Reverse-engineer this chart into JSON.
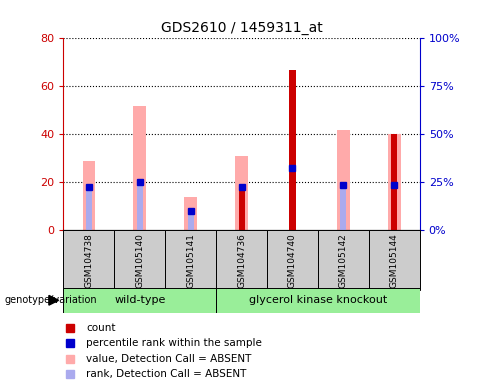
{
  "title": "GDS2610 / 1459311_at",
  "samples": [
    "GSM104738",
    "GSM105140",
    "GSM105141",
    "GSM104736",
    "GSM104740",
    "GSM105142",
    "GSM105144"
  ],
  "group1_label": "wild-type",
  "group2_label": "glycerol kinase knockout",
  "group1_indices": [
    0,
    1,
    2
  ],
  "group2_indices": [
    3,
    4,
    5,
    6
  ],
  "pink_bars": [
    29,
    52,
    14,
    31,
    0,
    42,
    40
  ],
  "light_blue_bars": [
    18,
    20,
    8,
    18,
    25,
    19,
    19
  ],
  "dark_red_bars": [
    0,
    0,
    0,
    17,
    67,
    0,
    40
  ],
  "blue_squares": [
    18,
    20,
    8,
    18,
    26,
    19,
    19
  ],
  "ylim_left": [
    0,
    80
  ],
  "ylim_right": [
    0,
    100
  ],
  "yticks_left": [
    0,
    20,
    40,
    60,
    80
  ],
  "yticks_right": [
    0,
    25,
    50,
    75,
    100
  ],
  "ytick_labels_left": [
    "0",
    "20",
    "40",
    "60",
    "80"
  ],
  "ytick_labels_right": [
    "0%",
    "25%",
    "50%",
    "75%",
    "100%"
  ],
  "left_axis_color": "#cc0000",
  "right_axis_color": "#0000cc",
  "pink_color": "#ffaaaa",
  "light_blue_color": "#aaaaee",
  "dark_red_color": "#cc0000",
  "blue_square_color": "#0000cc",
  "group_bg_color": "#99ee99",
  "sample_bg_color": "#cccccc",
  "pink_bar_width": 0.25,
  "blue_bar_width": 0.12,
  "red_bar_width": 0.12,
  "legend_items": [
    "count",
    "percentile rank within the sample",
    "value, Detection Call = ABSENT",
    "rank, Detection Call = ABSENT"
  ],
  "legend_colors": [
    "#cc0000",
    "#0000cc",
    "#ffaaaa",
    "#aaaaee"
  ]
}
